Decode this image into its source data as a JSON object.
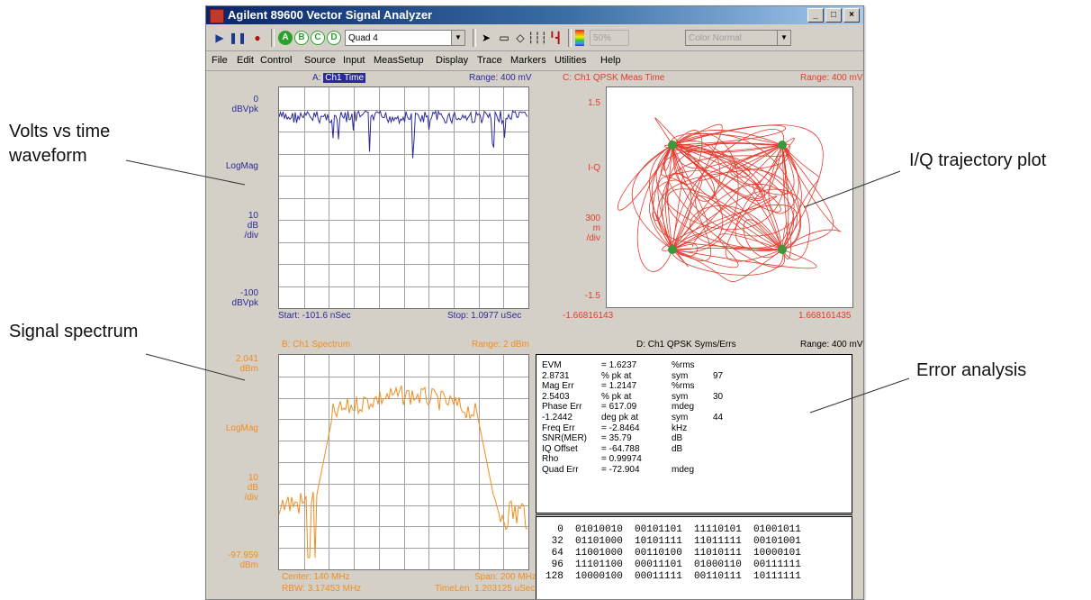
{
  "window": {
    "title": "Agilent 89600 Vector Signal Analyzer",
    "controls": [
      "_",
      "□",
      "×"
    ]
  },
  "toolbar": {
    "trace_buttons": [
      "A",
      "B",
      "C",
      "D"
    ],
    "layout_value": "Quad 4",
    "persistence_value": "50%",
    "color_mode_value": "Color Normal"
  },
  "menu": [
    "File",
    "Edit",
    "Control",
    "Source",
    "Input",
    "MeasSetup",
    "Display",
    "Trace",
    "Markers",
    "Utilities",
    "Help"
  ],
  "panelA": {
    "title_prefix": "A:",
    "title_highlight": "Ch1 Time",
    "range": "Range: 400 mV",
    "y_top": [
      "0",
      "dBVpk"
    ],
    "format": "LogMag",
    "scale": [
      "10",
      "dB",
      "/div"
    ],
    "y_bottom": [
      "-100",
      "dBVpk"
    ],
    "start": "Start: -101.6 nSec",
    "stop": "Stop: 1.0977 uSec",
    "color": "#2a2a9a"
  },
  "panelB": {
    "title": "B: Ch1 Spectrum",
    "range": "Range: 2 dBm",
    "y_top": [
      "2.041",
      "dBm"
    ],
    "format": "LogMag",
    "scale": [
      "10",
      "dB",
      "/div"
    ],
    "y_bottom": [
      "-97.959",
      "dBm"
    ],
    "center": "Center: 140 MHz",
    "span": "Span: 200 MHz",
    "rbw": "RBW: 3.17453 MHz",
    "timelen": "TimeLen: 1.203125 uSec",
    "color": "#f28c1e"
  },
  "panelC": {
    "title": "C: Ch1 QPSK Meas Time",
    "range": "Range: 400 mV",
    "y_top": "1.5",
    "format": "I-Q",
    "scale": [
      "300",
      "m",
      "/div"
    ],
    "y_bottom": "-1.5",
    "x_left": "-1.66816143",
    "x_right": "1.668161435",
    "color": "#e33b2e",
    "symbol_color": "#3a9a3a"
  },
  "panelD": {
    "title": "D: Ch1 QPSK Syms/Errs",
    "range": "Range: 400 mV",
    "errors": [
      [
        "EVM",
        "= 1.6237",
        "%rms",
        ""
      ],
      [
        "2.8731",
        "% pk  at",
        "sym",
        "97"
      ],
      [
        "Mag Err",
        "= 1.2147",
        "%rms",
        ""
      ],
      [
        "2.5403",
        "% pk  at",
        "sym",
        "30"
      ],
      [
        "Phase Err",
        "= 617.09",
        "mdeg",
        ""
      ],
      [
        "-1.2442",
        "deg  pk  at",
        "sym",
        "44"
      ],
      [
        "Freq  Err",
        "= -2.8464",
        "kHz",
        ""
      ],
      [
        "SNR(MER)",
        "= 35.79",
        "dB",
        ""
      ],
      [
        "IQ  Offset",
        "= -64.788",
        "dB",
        ""
      ],
      [
        "Rho",
        "= 0.99974",
        "",
        ""
      ],
      [
        "Quad Err",
        "= -72.904",
        "mdeg",
        ""
      ]
    ],
    "symbols": [
      "  0  01010010  00101101  11110101  01001011",
      " 32  01101000  10101111  11011111  00101001",
      " 64  11001000  00110100  11010111  10000101",
      " 96  11101100  00011101  01000110  00111111",
      "128  10000100  00011111  00110111  10111111"
    ]
  },
  "callouts": {
    "volts": [
      "Volts vs time",
      "waveform"
    ],
    "spectrum": "Signal spectrum",
    "iq": "I/Q trajectory plot",
    "error": "Error analysis"
  }
}
